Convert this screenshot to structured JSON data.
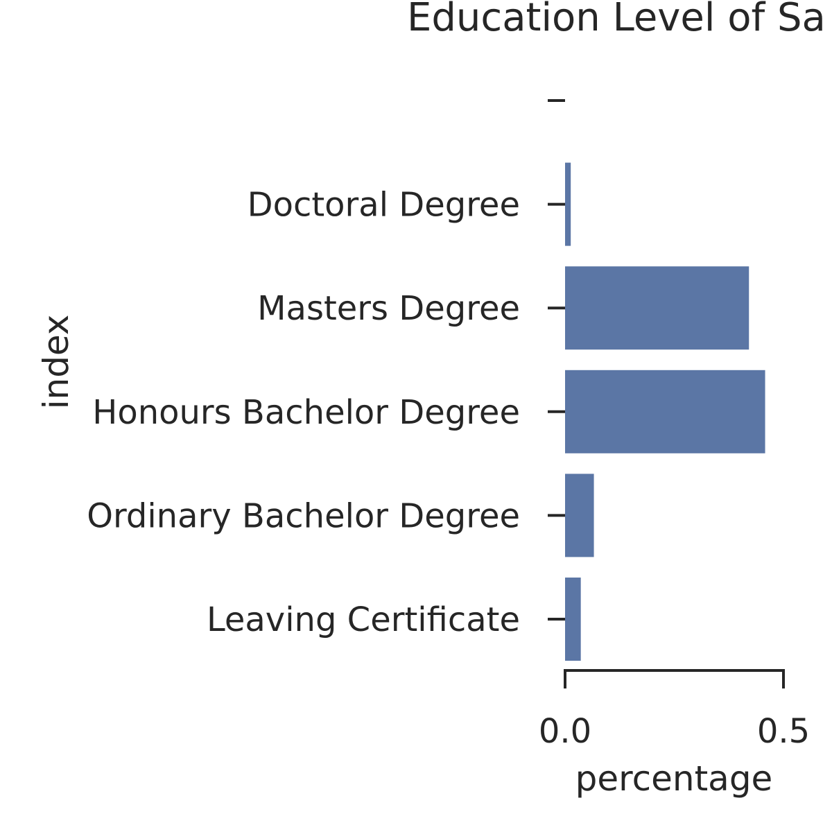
{
  "chart_data": {
    "type": "bar",
    "orientation": "horizontal",
    "title": "Education Level of Sa",
    "xlabel": "percentage",
    "ylabel": "index",
    "categories": [
      "",
      "Doctoral Degree",
      "Masters Degree",
      "Honours Bachelor Degree",
      "Ordinary Bachelor Degree",
      "Leaving Certificate"
    ],
    "values": [
      0.0,
      0.013,
      0.421,
      0.458,
      0.066,
      0.036
    ],
    "xlim": [
      0.0,
      0.5
    ],
    "xticks": [
      0.0,
      0.5
    ],
    "xtick_labels": [
      "0.0",
      "0.5"
    ],
    "grid": false,
    "colors": {
      "bar": "#5b76a5",
      "axis": "#262626",
      "text": "#262626"
    }
  }
}
